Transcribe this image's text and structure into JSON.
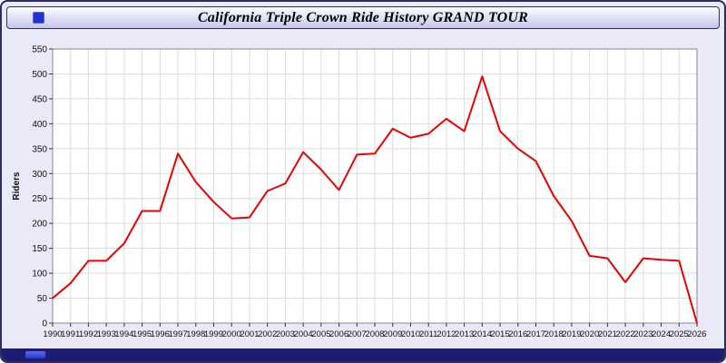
{
  "window": {
    "title": "California Triple Crown Ride History GRAND TOUR"
  },
  "chart_data": {
    "type": "line",
    "title": "California Triple Crown Ride History GRAND TOUR",
    "xlabel": "",
    "ylabel": "Riders",
    "ylim": [
      0,
      550
    ],
    "ytick_step": 50,
    "grid": true,
    "legend": "none",
    "line_color": "#ee0000",
    "x": [
      1990,
      1991,
      1992,
      1993,
      1994,
      1995,
      1996,
      1997,
      1998,
      1999,
      2000,
      2001,
      2002,
      2003,
      2004,
      2005,
      2006,
      2007,
      2008,
      2009,
      2010,
      2011,
      2012,
      2013,
      2014,
      2015,
      2016,
      2017,
      2018,
      2019,
      2020,
      2021,
      2022,
      2023,
      2024,
      2025,
      2026
    ],
    "values": [
      50,
      80,
      125,
      125,
      160,
      225,
      225,
      340,
      283,
      243,
      210,
      212,
      265,
      280,
      343,
      308,
      267,
      338,
      340,
      390,
      372,
      380,
      410,
      385,
      495,
      385,
      350,
      325,
      255,
      205,
      135,
      130,
      82,
      130,
      127,
      125,
      0
    ]
  },
  "colors": {
    "window_bg": "#e9e9f7",
    "window_border": "#2e2e5e",
    "plot_bg": "#ffffff",
    "grid": "#dcdcdc",
    "axis": "#888888",
    "tick": "#333333",
    "tick_label": "#111111",
    "line": "#ee0000",
    "footer_bar": "#1c1c72",
    "footer_button": "#3a46d8"
  }
}
